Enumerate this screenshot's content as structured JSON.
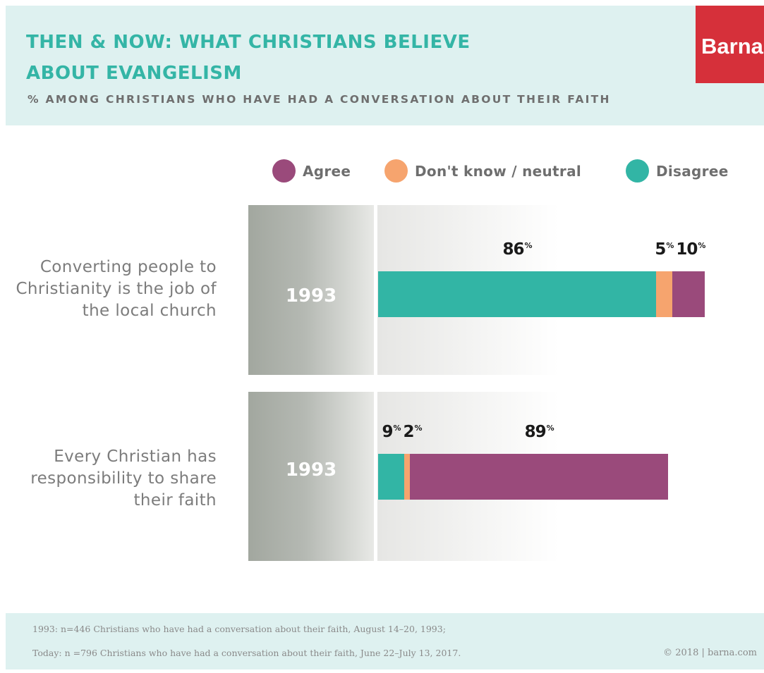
{
  "header": {
    "title": "THEN & NOW: WHAT CHRISTIANS BELIEVE ABOUT EVANGELISM",
    "subtitle": "% AMONG CHRISTIANS WHO HAVE HAD A CONVERSATION ABOUT THEIR FAITH",
    "logo_text": "Barna"
  },
  "colors": {
    "agree": "#9a4a7b",
    "neutral": "#f6a46e",
    "disagree": "#32b5a5",
    "header_bg": "#def1f0",
    "logo_bg": "#d6303a"
  },
  "chart_data": {
    "type": "bar",
    "orientation": "horizontal-stacked",
    "legend": [
      {
        "key": "agree",
        "label": "Agree"
      },
      {
        "key": "neutral",
        "label": "Don't know / neutral"
      },
      {
        "key": "disagree",
        "label": "Disagree"
      }
    ],
    "legend_position": "top",
    "rows": [
      {
        "label": "Converting people to Christianity is the job of the local church",
        "year": "1993",
        "segments": [
          {
            "key": "disagree",
            "value": 86
          },
          {
            "key": "neutral",
            "value": 5
          },
          {
            "key": "agree",
            "value": 10
          }
        ]
      },
      {
        "label": "Every Christian has responsibility to share their faith",
        "year": "1993",
        "segments": [
          {
            "key": "disagree",
            "value": 9
          },
          {
            "key": "neutral",
            "value": 2
          },
          {
            "key": "agree",
            "value": 89
          }
        ]
      }
    ],
    "value_suffix": "%"
  },
  "footer": {
    "notes": [
      "1993: n=446 Christians who have had a conversation about their faith, August 14–20, 1993;",
      "Today: n =796 Christians who have had a conversation about their faith, June 22–July 13, 2017."
    ],
    "credit": "© 2018 | barna.com"
  }
}
